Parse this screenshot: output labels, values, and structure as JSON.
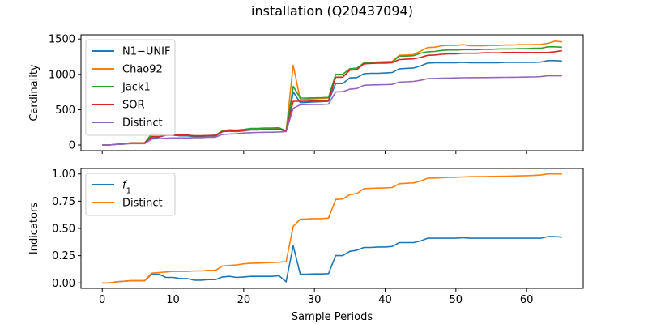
{
  "figure": {
    "title": "installation (Q20437094)"
  },
  "chart_data": [
    {
      "type": "line",
      "ylabel": "Cardinality",
      "xlabel": "",
      "xlim": [
        -3,
        68
      ],
      "ylim": [
        -80,
        1560
      ],
      "xticks": [
        0,
        10,
        20,
        30,
        40,
        50,
        60
      ],
      "yticks": [
        0,
        500,
        1000,
        1500
      ],
      "show_x_tick_labels": false,
      "grid": false,
      "legend_position": "upper-left",
      "x": [
        0,
        1,
        2,
        3,
        4,
        5,
        6,
        7,
        8,
        9,
        10,
        11,
        12,
        13,
        14,
        15,
        16,
        17,
        18,
        19,
        20,
        21,
        22,
        23,
        24,
        25,
        26,
        27,
        28,
        29,
        30,
        31,
        32,
        33,
        34,
        35,
        36,
        37,
        38,
        39,
        40,
        41,
        42,
        43,
        44,
        45,
        46,
        47,
        48,
        49,
        50,
        51,
        52,
        53,
        54,
        55,
        56,
        57,
        58,
        59,
        60,
        61,
        62,
        63,
        64,
        65
      ],
      "series": [
        {
          "name": "N1−UNIF",
          "color": "#1f77b4",
          "values": [
            0,
            0,
            10,
            12,
            25,
            25,
            25,
            100,
            110,
            140,
            140,
            130,
            130,
            120,
            120,
            125,
            125,
            190,
            195,
            190,
            200,
            215,
            215,
            220,
            220,
            225,
            190,
            750,
            600,
            605,
            610,
            615,
            620,
            870,
            870,
            950,
            955,
            1010,
            1015,
            1015,
            1020,
            1025,
            1080,
            1085,
            1090,
            1120,
            1160,
            1165,
            1165,
            1165,
            1165,
            1170,
            1165,
            1165,
            1165,
            1165,
            1165,
            1170,
            1170,
            1170,
            1170,
            1170,
            1175,
            1195,
            1195,
            1190
          ]
        },
        {
          "name": "Chao92",
          "color": "#ff7f0e",
          "values": [
            0,
            0,
            10,
            15,
            30,
            30,
            30,
            140,
            140,
            150,
            150,
            140,
            140,
            130,
            130,
            135,
            135,
            200,
            205,
            200,
            210,
            225,
            225,
            230,
            230,
            240,
            200,
            1130,
            640,
            650,
            655,
            660,
            665,
            960,
            960,
            1060,
            1065,
            1170,
            1170,
            1175,
            1180,
            1185,
            1270,
            1275,
            1280,
            1330,
            1380,
            1385,
            1405,
            1410,
            1410,
            1420,
            1405,
            1405,
            1405,
            1410,
            1410,
            1415,
            1415,
            1420,
            1420,
            1420,
            1425,
            1440,
            1470,
            1460
          ]
        },
        {
          "name": "Jack1",
          "color": "#2ca02c",
          "values": [
            0,
            0,
            10,
            15,
            30,
            30,
            30,
            160,
            155,
            140,
            140,
            140,
            140,
            130,
            130,
            135,
            140,
            200,
            215,
            210,
            220,
            235,
            235,
            240,
            240,
            245,
            200,
            830,
            665,
            665,
            668,
            670,
            675,
            1000,
            1000,
            1080,
            1090,
            1160,
            1165,
            1170,
            1170,
            1175,
            1260,
            1260,
            1265,
            1300,
            1320,
            1325,
            1340,
            1345,
            1345,
            1350,
            1350,
            1350,
            1355,
            1355,
            1360,
            1360,
            1360,
            1365,
            1365,
            1370,
            1370,
            1390,
            1390,
            1385
          ]
        },
        {
          "name": "SOR",
          "color": "#d62728",
          "values": [
            0,
            0,
            10,
            15,
            30,
            30,
            30,
            120,
            120,
            140,
            145,
            140,
            140,
            130,
            130,
            135,
            135,
            190,
            200,
            200,
            205,
            215,
            215,
            220,
            220,
            225,
            200,
            620,
            620,
            620,
            625,
            630,
            630,
            960,
            960,
            1060,
            1070,
            1150,
            1155,
            1160,
            1160,
            1165,
            1210,
            1215,
            1220,
            1240,
            1270,
            1275,
            1285,
            1290,
            1290,
            1300,
            1300,
            1300,
            1305,
            1305,
            1305,
            1310,
            1310,
            1310,
            1310,
            1310,
            1310,
            1310,
            1320,
            1335
          ]
        },
        {
          "name": "Distinct",
          "color": "#9467bd",
          "values": [
            0,
            0,
            10,
            12,
            20,
            20,
            20,
            85,
            90,
            95,
            100,
            100,
            100,
            105,
            105,
            110,
            110,
            150,
            155,
            160,
            170,
            175,
            178,
            180,
            182,
            185,
            190,
            520,
            570,
            572,
            575,
            575,
            580,
            750,
            755,
            790,
            800,
            845,
            850,
            852,
            855,
            858,
            890,
            895,
            900,
            915,
            940,
            942,
            945,
            948,
            950,
            952,
            953,
            954,
            955,
            956,
            957,
            958,
            959,
            960,
            962,
            964,
            968,
            980,
            980,
            980
          ]
        }
      ]
    },
    {
      "type": "line",
      "ylabel": "Indicators",
      "xlabel": "Sample Periods",
      "xlim": [
        -3,
        68
      ],
      "ylim": [
        -0.05,
        1.05
      ],
      "xticks": [
        0,
        10,
        20,
        30,
        40,
        50,
        60
      ],
      "yticks": [
        0.0,
        0.25,
        0.5,
        0.75,
        1.0
      ],
      "ytick_labels": [
        "0.00",
        "0.25",
        "0.50",
        "0.75",
        "1.00"
      ],
      "show_x_tick_labels": true,
      "grid": false,
      "legend_position": "upper-left",
      "x": [
        0,
        1,
        2,
        3,
        4,
        5,
        6,
        7,
        8,
        9,
        10,
        11,
        12,
        13,
        14,
        15,
        16,
        17,
        18,
        19,
        20,
        21,
        22,
        23,
        24,
        25,
        26,
        27,
        28,
        29,
        30,
        31,
        32,
        33,
        34,
        35,
        36,
        37,
        38,
        39,
        40,
        41,
        42,
        43,
        44,
        45,
        46,
        47,
        48,
        49,
        50,
        51,
        52,
        53,
        54,
        55,
        56,
        57,
        58,
        59,
        60,
        61,
        62,
        63,
        64,
        65
      ],
      "series": [
        {
          "name": "f1",
          "color": "#1f77b4",
          "values": [
            0.0,
            0.0,
            0.01,
            0.015,
            0.02,
            0.02,
            0.02,
            0.08,
            0.08,
            0.05,
            0.05,
            0.04,
            0.04,
            0.025,
            0.025,
            0.03,
            0.03,
            0.055,
            0.06,
            0.05,
            0.055,
            0.06,
            0.06,
            0.06,
            0.06,
            0.065,
            0.01,
            0.34,
            0.08,
            0.08,
            0.082,
            0.082,
            0.085,
            0.25,
            0.25,
            0.29,
            0.3,
            0.325,
            0.325,
            0.33,
            0.33,
            0.335,
            0.37,
            0.37,
            0.37,
            0.385,
            0.41,
            0.41,
            0.41,
            0.41,
            0.41,
            0.415,
            0.41,
            0.41,
            0.41,
            0.41,
            0.41,
            0.41,
            0.41,
            0.41,
            0.41,
            0.41,
            0.41,
            0.425,
            0.425,
            0.42
          ]
        },
        {
          "name": "Distinct",
          "color": "#ff7f0e",
          "values": [
            0.0,
            0.0,
            0.01,
            0.015,
            0.02,
            0.02,
            0.02,
            0.09,
            0.095,
            0.1,
            0.105,
            0.105,
            0.105,
            0.11,
            0.11,
            0.115,
            0.115,
            0.155,
            0.16,
            0.165,
            0.175,
            0.18,
            0.182,
            0.185,
            0.187,
            0.19,
            0.195,
            0.52,
            0.585,
            0.587,
            0.59,
            0.59,
            0.595,
            0.765,
            0.77,
            0.81,
            0.82,
            0.865,
            0.868,
            0.87,
            0.872,
            0.875,
            0.91,
            0.915,
            0.918,
            0.935,
            0.96,
            0.962,
            0.965,
            0.968,
            0.97,
            0.972,
            0.974,
            0.975,
            0.976,
            0.977,
            0.978,
            0.979,
            0.98,
            0.982,
            0.984,
            0.986,
            0.99,
            1.0,
            1.0,
            1.0
          ]
        }
      ]
    }
  ]
}
